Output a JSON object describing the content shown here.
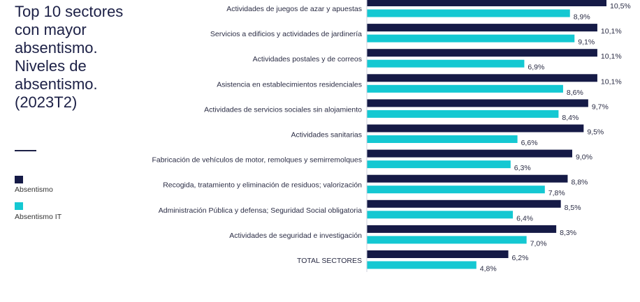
{
  "colors": {
    "absentismo": "#151a46",
    "absentismo_it": "#14c8d2",
    "axis": "#cfd2dc"
  },
  "title": "Top 10 sectores\ncon mayor\nabsentismo.\nNiveles de\nabsentismo.\n(2023T2)",
  "legend": [
    {
      "label": "Absentismo",
      "color": "#151a46"
    },
    {
      "label": "Absentismo IT",
      "color": "#14c8d2"
    }
  ],
  "chart_data": {
    "type": "bar",
    "orientation": "horizontal",
    "categories": [
      "Actividades de juegos de azar y apuestas",
      "Servicios a edificios y actividades de jardinería",
      "Actividades postales y de correos",
      "Asistencia en establecimientos residenciales",
      "Actividades de servicios sociales sin alojamiento",
      "Actividades sanitarias",
      "Fabricación de vehículos de motor, remolques y semirremolques",
      "Recogida, tratamiento y eliminación de residuos; valorización",
      "Administración Pública y defensa; Seguridad Social obligatoria",
      "Actividades de seguridad e investigación",
      "TOTAL SECTORES"
    ],
    "series": [
      {
        "name": "Absentismo",
        "values": [
          10.5,
          10.1,
          10.1,
          10.1,
          9.7,
          9.5,
          9.0,
          8.8,
          8.5,
          8.3,
          6.2
        ],
        "labels": [
          "10,5%",
          "10,1%",
          "10,1%",
          "10,1%",
          "9,7%",
          "9,5%",
          "9,0%",
          "8,8%",
          "8,5%",
          "8,3%",
          "6,2%"
        ]
      },
      {
        "name": "Absentismo IT",
        "values": [
          8.9,
          9.1,
          6.9,
          8.6,
          8.4,
          6.6,
          6.3,
          7.8,
          6.4,
          7.0,
          4.8
        ],
        "labels": [
          "8,9%",
          "9,1%",
          "6,9%",
          "8,6%",
          "8,4%",
          "6,6%",
          "6,3%",
          "7,8%",
          "6,4%",
          "7,0%",
          "4,8%"
        ]
      }
    ],
    "xlim": [
      0,
      10.5
    ],
    "grid": false,
    "legend_position": "left"
  }
}
